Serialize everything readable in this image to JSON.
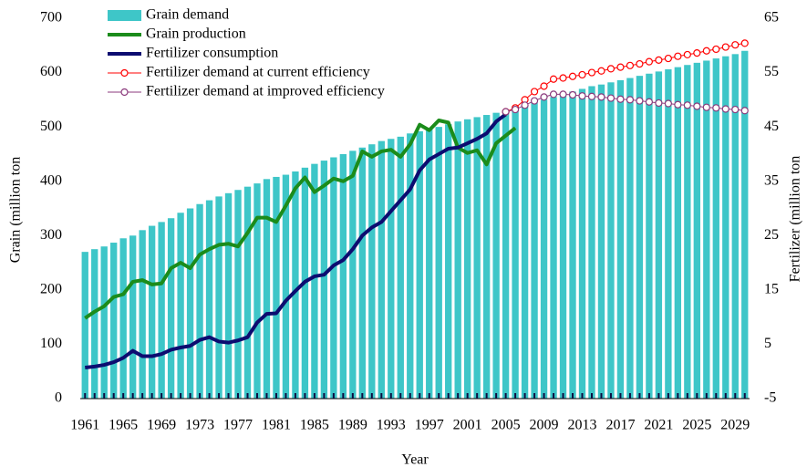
{
  "chart_data": {
    "type": "combo",
    "x_label": "Year",
    "y_label": "Grain (million ton",
    "y2_label": "Fertilizer (million ton",
    "x": [
      1961,
      1962,
      1963,
      1964,
      1965,
      1966,
      1967,
      1968,
      1969,
      1970,
      1971,
      1972,
      1973,
      1974,
      1975,
      1976,
      1977,
      1978,
      1979,
      1980,
      1981,
      1982,
      1983,
      1984,
      1985,
      1986,
      1987,
      1988,
      1989,
      1990,
      1991,
      1992,
      1993,
      1994,
      1995,
      1996,
      1997,
      1998,
      1999,
      2000,
      2001,
      2002,
      2003,
      2004,
      2005,
      2006,
      2007,
      2008,
      2009,
      2010,
      2011,
      2012,
      2013,
      2014,
      2015,
      2016,
      2017,
      2018,
      2019,
      2020,
      2021,
      2022,
      2023,
      2024,
      2025,
      2026,
      2027,
      2028,
      2029,
      2030
    ],
    "xlim": [
      1960.5,
      2030.5
    ],
    "xticks": [
      1961,
      1965,
      1969,
      1973,
      1977,
      1981,
      1985,
      1989,
      1993,
      1997,
      2001,
      2005,
      2009,
      2013,
      2017,
      2021,
      2025,
      2029
    ],
    "ylim": [
      0,
      700
    ],
    "yticks": [
      0,
      100,
      200,
      300,
      400,
      500,
      600,
      700
    ],
    "y2lim": [
      -5,
      65
    ],
    "y2ticks": [
      -5,
      5,
      15,
      25,
      35,
      45,
      55,
      65
    ],
    "legend": "upper left",
    "series": [
      {
        "name": "Grain demand",
        "type": "bar",
        "color": "#3ec6c8",
        "axis": "y",
        "values": [
          270,
          275,
          280,
          287,
          295,
          300,
          310,
          318,
          325,
          332,
          342,
          350,
          358,
          365,
          372,
          378,
          384,
          390,
          396,
          404,
          408,
          412,
          418,
          425,
          432,
          438,
          444,
          450,
          456,
          462,
          468,
          474,
          478,
          482,
          488,
          492,
          496,
          500,
          505,
          510,
          514,
          518,
          522,
          526,
          530,
          535,
          540,
          545,
          550,
          555,
          560,
          565,
          570,
          575,
          578,
          582,
          586,
          590,
          594,
          598,
          602,
          606,
          610,
          614,
          618,
          622,
          626,
          630,
          634,
          640
        ]
      },
      {
        "name": "Grain production",
        "type": "line",
        "color": "#1b8c1b",
        "axis": "y",
        "values": [
          148,
          160,
          170,
          187,
          192,
          215,
          218,
          210,
          212,
          240,
          250,
          240,
          265,
          275,
          283,
          285,
          280,
          305,
          333,
          333,
          325,
          355,
          387,
          407,
          380,
          392,
          405,
          400,
          410,
          455,
          445,
          455,
          458,
          445,
          468,
          504,
          494,
          512,
          508,
          462,
          452,
          457,
          431,
          470,
          484,
          498,
          null,
          null,
          null,
          null,
          null,
          null,
          null,
          null,
          null,
          null,
          null,
          null,
          null,
          null,
          null,
          null,
          null,
          null,
          null,
          null,
          null,
          null,
          null,
          null
        ]
      },
      {
        "name": "Fertilizer consumption",
        "type": "line",
        "color": "#0c0c70",
        "axis": "y2",
        "values": [
          0.7,
          0.9,
          1.2,
          1.7,
          2.5,
          3.8,
          2.8,
          2.8,
          3.2,
          4,
          4.4,
          4.7,
          5.8,
          6.3,
          5.5,
          5.3,
          5.7,
          6.3,
          9,
          10.6,
          10.7,
          13,
          14.8,
          16.5,
          17.5,
          17.8,
          19.5,
          20.5,
          22.5,
          25,
          26.5,
          27.5,
          29.5,
          31.5,
          33.5,
          37,
          39,
          40,
          41,
          41.2,
          42,
          42.8,
          43.8,
          46,
          47.3,
          null,
          null,
          null,
          null,
          null,
          null,
          null,
          null,
          null,
          null,
          null,
          null,
          null,
          null,
          null,
          null,
          null,
          null,
          null,
          null,
          null,
          null,
          null,
          null,
          null
        ]
      },
      {
        "name": "Fertilizer demand at current efficiency",
        "type": "line",
        "marker": "circle",
        "color": "#ff0000",
        "axis": "y2",
        "values": [
          null,
          null,
          null,
          null,
          null,
          null,
          null,
          null,
          null,
          null,
          null,
          null,
          null,
          null,
          null,
          null,
          null,
          null,
          null,
          null,
          null,
          null,
          null,
          null,
          null,
          null,
          null,
          null,
          null,
          null,
          null,
          null,
          null,
          null,
          null,
          null,
          null,
          null,
          null,
          null,
          null,
          null,
          null,
          null,
          47.8,
          48.5,
          50,
          51.5,
          52.5,
          53.8,
          54,
          54.3,
          54.6,
          55,
          55.3,
          55.7,
          56,
          56.3,
          56.6,
          57,
          57.3,
          57.6,
          58,
          58.3,
          58.6,
          59,
          59.3,
          59.7,
          60.1,
          60.4
        ]
      },
      {
        "name": "Fertilizer demand at improved efficiency",
        "type": "line",
        "marker": "circle",
        "color": "#8b3a7c",
        "axis": "y2",
        "values": [
          null,
          null,
          null,
          null,
          null,
          null,
          null,
          null,
          null,
          null,
          null,
          null,
          null,
          null,
          null,
          null,
          null,
          null,
          null,
          null,
          null,
          null,
          null,
          null,
          null,
          null,
          null,
          null,
          null,
          null,
          null,
          null,
          null,
          null,
          null,
          null,
          null,
          null,
          null,
          null,
          null,
          null,
          null,
          null,
          47.8,
          48.2,
          49,
          49.8,
          50.5,
          51,
          51,
          50.9,
          50.7,
          50.6,
          50.5,
          50.3,
          50.1,
          50,
          49.8,
          49.6,
          49.4,
          49.3,
          49.1,
          49,
          48.8,
          48.6,
          48.5,
          48.3,
          48.2,
          48
        ]
      }
    ]
  }
}
